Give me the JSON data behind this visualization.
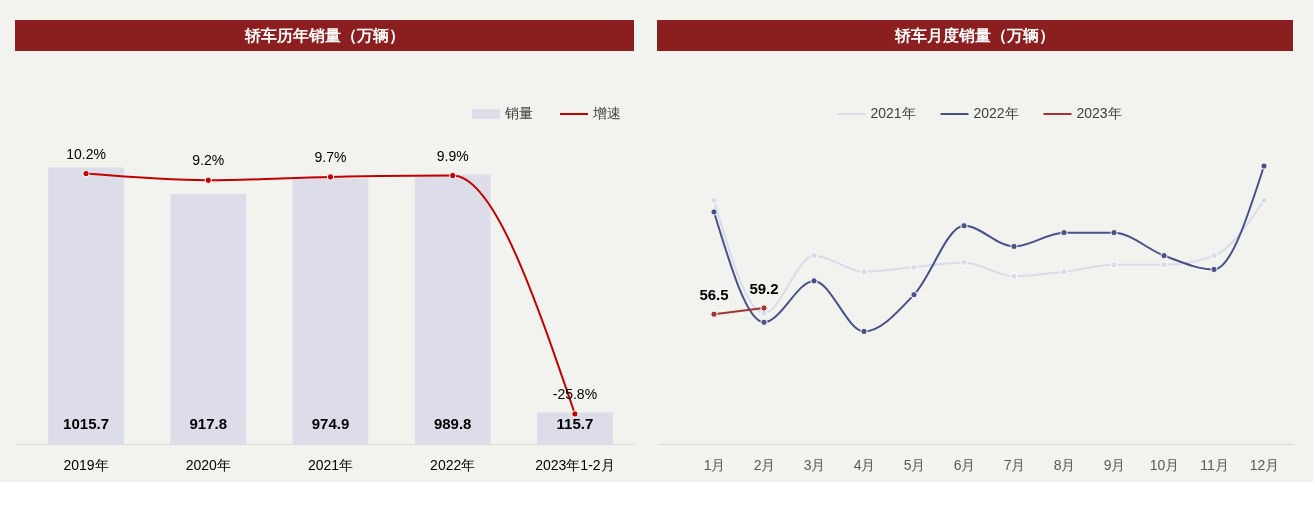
{
  "chart_data": [
    {
      "type": "bar",
      "title": "轿车历年销量（万辆）",
      "categories": [
        "2019年",
        "2020年",
        "2021年",
        "2022年",
        "2023年1-2月"
      ],
      "series": [
        {
          "name": "销量",
          "type": "bar",
          "color": "#dcdde8",
          "values": [
            1015.7,
            917.8,
            974.9,
            989.8,
            115.7
          ],
          "value_labels": [
            "1015.7",
            "917.8",
            "974.9",
            "989.8",
            "115.7"
          ]
        },
        {
          "name": "增速",
          "type": "line",
          "axis": "y2",
          "color": "#c00000",
          "values": [
            10.2,
            9.2,
            9.7,
            9.9,
            -25.8
          ],
          "value_labels": [
            "10.2%",
            "9.2%",
            "9.7%",
            "9.9%",
            "-25.8%"
          ]
        }
      ],
      "tick_labels": "x",
      "legend": "top right",
      "marker": "circle"
    },
    {
      "type": "line",
      "title": "轿车月度销量（万辆）",
      "categories": [
        "1月",
        "2月",
        "3月",
        "4月",
        "5月",
        "6月",
        "7月",
        "8月",
        "9月",
        "10月",
        "11月",
        "12月"
      ],
      "series": [
        {
          "name": "2021年",
          "color": "#d9dbea",
          "values": [
            106,
            57,
            82,
            75,
            77,
            79,
            73,
            75,
            78,
            78,
            82,
            106
          ]
        },
        {
          "name": "2022年",
          "color": "#48518a",
          "values": [
            101,
            53,
            71,
            49,
            65,
            95,
            86,
            92,
            92,
            82,
            76,
            121
          ]
        },
        {
          "name": "2023年",
          "color": "#a33333",
          "values": [
            56.5,
            59.2,
            null,
            null,
            null,
            null,
            null,
            null,
            null,
            null,
            null,
            null
          ],
          "value_labels": [
            "56.5",
            "59.2",
            null,
            null,
            null,
            null,
            null,
            null,
            null,
            null,
            null,
            null
          ]
        }
      ],
      "tick_labels": "x",
      "legend": "top",
      "marker": "circle"
    }
  ]
}
